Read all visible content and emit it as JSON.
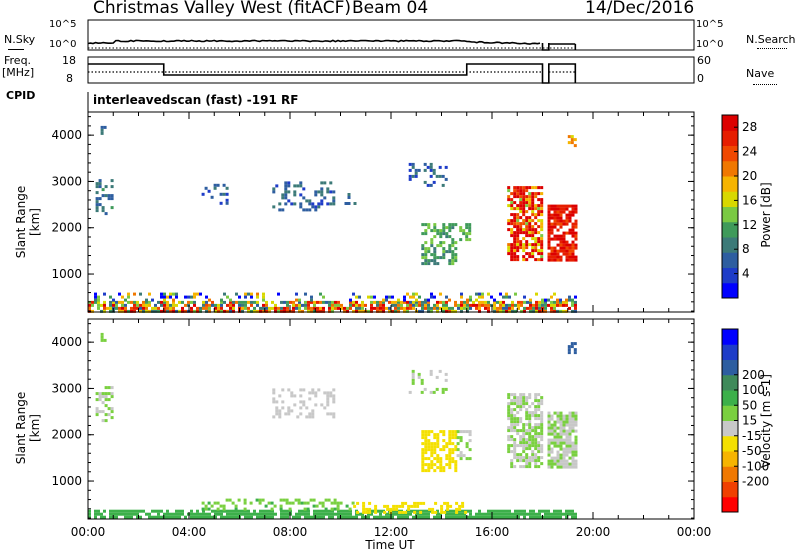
{
  "header": {
    "station": "Christmas Valley West (fitACF)",
    "beam": "Beam 04",
    "date": "14/Dec/2016"
  },
  "top_panels": {
    "nsky_label": "N.Sky",
    "nsky_ticks": [
      "10^5",
      "10^0"
    ],
    "nsearch_label": "N.Search",
    "nsearch_ticks": [
      "10^5",
      "10^0"
    ],
    "freq_label": "Freq.",
    "freq_unit": "[MHz]",
    "freq_ticks": [
      "18",
      "8"
    ],
    "nave_label": "Nave",
    "nave_ticks": [
      "60",
      "0"
    ],
    "cpid_label": "CPID",
    "cpid_text": "interleavedscan (fast) -191 RF"
  },
  "chart_data": [
    {
      "type": "heatmap",
      "title": "",
      "xlabel": "Time UT",
      "ylabel": "Slant Range [km]",
      "xlim": [
        0,
        24
      ],
      "ylim": [
        180,
        4500
      ],
      "x_ticks": [
        "00:00",
        "04:00",
        "08:00",
        "12:00",
        "16:00",
        "20:00",
        "00:00"
      ],
      "y_ticks": [
        "1000",
        "2000",
        "3000",
        "4000"
      ],
      "colorbar": {
        "label": "Power [dB]",
        "ticks": [
          "4",
          "8",
          "12",
          "16",
          "20",
          "24",
          "28"
        ],
        "range": [
          0,
          30
        ],
        "colors": [
          "#0000ff",
          "#1e3cc8",
          "#2e5ea0",
          "#3c7a78",
          "#3f9a5a",
          "#7ac943",
          "#d8d800",
          "#f6b400",
          "#f07800",
          "#f04800",
          "#e61e00",
          "#dc0000"
        ]
      },
      "regions": [
        {
          "t": [
            0.0,
            19.3
          ],
          "r": [
            190,
            420
          ],
          "value": 18,
          "density": 0.75,
          "mixed": true
        },
        {
          "t": [
            0.0,
            19.3
          ],
          "r": [
            420,
            600
          ],
          "value": 10,
          "density": 0.25,
          "mixed": true
        },
        {
          "t": [
            0.3,
            1.0
          ],
          "r": [
            2300,
            3050
          ],
          "value": 8,
          "density": 0.5
        },
        {
          "t": [
            0.5,
            0.7
          ],
          "r": [
            4050,
            4200
          ],
          "value": 6,
          "density": 0.6
        },
        {
          "t": [
            4.5,
            5.5
          ],
          "r": [
            2550,
            2950
          ],
          "value": 6,
          "density": 0.2
        },
        {
          "t": [
            7.3,
            9.7
          ],
          "r": [
            2400,
            3000
          ],
          "value": 7,
          "density": 0.35
        },
        {
          "t": [
            9.8,
            10.6
          ],
          "r": [
            2500,
            2750
          ],
          "value": 6,
          "density": 0.2
        },
        {
          "t": [
            12.7,
            14.2
          ],
          "r": [
            2900,
            3400
          ],
          "value": 6,
          "density": 0.3
        },
        {
          "t": [
            13.2,
            14.6
          ],
          "r": [
            1200,
            2100
          ],
          "value": 11,
          "density": 0.55
        },
        {
          "t": [
            14.7,
            15.1
          ],
          "r": [
            1750,
            2100
          ],
          "value": 12,
          "density": 0.5
        },
        {
          "t": [
            16.6,
            18.0
          ],
          "r": [
            1300,
            2900
          ],
          "value": 26,
          "density": 0.7,
          "mixed": true
        },
        {
          "t": [
            18.2,
            19.3
          ],
          "r": [
            1300,
            2500
          ],
          "value": 27,
          "density": 0.8
        },
        {
          "t": [
            19.0,
            19.3
          ],
          "r": [
            3750,
            4000
          ],
          "value": 20,
          "density": 0.6
        }
      ]
    },
    {
      "type": "heatmap",
      "title": "",
      "xlabel": "Time UT",
      "ylabel": "Slant Range [km]",
      "xlim": [
        0,
        24
      ],
      "ylim": [
        180,
        4500
      ],
      "x_ticks": [
        "00:00",
        "04:00",
        "08:00",
        "12:00",
        "16:00",
        "20:00",
        "00:00"
      ],
      "y_ticks": [
        "1000",
        "2000",
        "3000",
        "4000"
      ],
      "colorbar": {
        "label": "Velocity [m s-1]",
        "ticks": [
          "-200",
          "-100",
          "-50",
          "-15",
          "15",
          "50",
          "100",
          "200"
        ],
        "colors": [
          "#ff0000",
          "#f04000",
          "#f07800",
          "#f6b400",
          "#f4e000",
          "#c8c8c8",
          "#7ad040",
          "#3cb04a",
          "#3f8a5a",
          "#2e5ea0",
          "#1e3cc8",
          "#0000ff"
        ]
      },
      "regions": [
        {
          "t": [
            0.0,
            19.3
          ],
          "r": [
            190,
            380
          ],
          "value": 60,
          "density": 0.8,
          "mixed": true
        },
        {
          "t": [
            4.5,
            10.5
          ],
          "r": [
            380,
            620
          ],
          "value": 40,
          "density": 0.4
        },
        {
          "t": [
            10.5,
            15.0
          ],
          "r": [
            300,
            550
          ],
          "value": -60,
          "density": 0.45
        },
        {
          "t": [
            0.3,
            1.0
          ],
          "r": [
            2300,
            3050
          ],
          "value": 0,
          "density": 0.45
        },
        {
          "t": [
            0.5,
            0.7
          ],
          "r": [
            4050,
            4200
          ],
          "value": 0,
          "density": 0.6
        },
        {
          "t": [
            7.3,
            9.7
          ],
          "r": [
            2400,
            3000
          ],
          "value": -20,
          "density": 0.3,
          "mixed": true
        },
        {
          "t": [
            12.7,
            14.2
          ],
          "r": [
            2900,
            3400
          ],
          "value": 0,
          "density": 0.25
        },
        {
          "t": [
            13.2,
            14.6
          ],
          "r": [
            1200,
            2100
          ],
          "value": -60,
          "density": 0.55
        },
        {
          "t": [
            14.6,
            15.1
          ],
          "r": [
            1500,
            2100
          ],
          "value": 0,
          "density": 0.5
        },
        {
          "t": [
            16.6,
            18.0
          ],
          "r": [
            1300,
            2900
          ],
          "value": 0,
          "density": 0.7,
          "mixed": true
        },
        {
          "t": [
            18.2,
            19.3
          ],
          "r": [
            1300,
            2500
          ],
          "value": 0,
          "density": 0.8,
          "mixed": true
        },
        {
          "t": [
            19.0,
            19.3
          ],
          "r": [
            3750,
            4000
          ],
          "value": 150,
          "density": 0.6
        }
      ]
    }
  ]
}
